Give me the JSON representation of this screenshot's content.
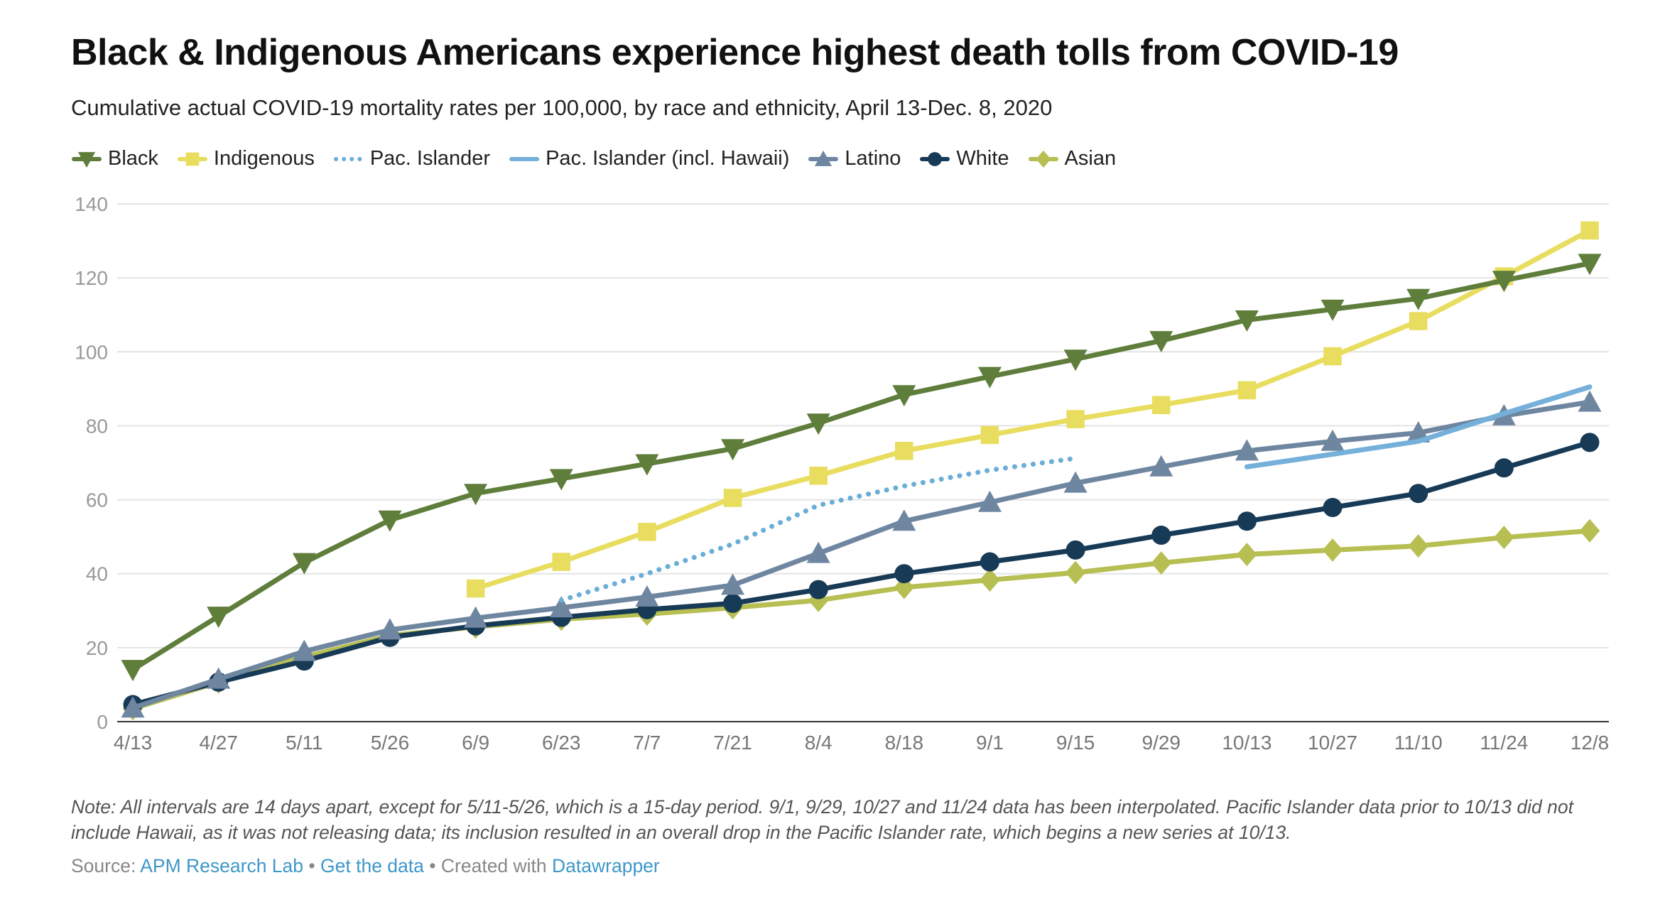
{
  "chart_data": {
    "type": "line",
    "title": "Black & Indigenous Americans experience highest death tolls from COVID-19",
    "subtitle": "Cumulative actual COVID-19 mortality rates per 100,000, by race and ethnicity, April 13-Dec. 8, 2020",
    "xlabel": "",
    "ylabel": "",
    "categories": [
      "4/13",
      "4/27",
      "5/11",
      "5/26",
      "6/9",
      "6/23",
      "7/7",
      "7/21",
      "8/4",
      "8/18",
      "9/1",
      "9/15",
      "9/29",
      "10/13",
      "10/27",
      "11/10",
      "11/24",
      "12/8"
    ],
    "ylim": [
      0,
      140
    ],
    "yticks": [
      0,
      20,
      40,
      60,
      80,
      100,
      120,
      140
    ],
    "grid": true,
    "legend_position": "top-left",
    "series": [
      {
        "name": "Black",
        "color": "#5f7d3b",
        "marker": "triangle-down",
        "dash": false,
        "values": [
          14.1,
          28.5,
          43,
          54.5,
          61.7,
          65.7,
          69.7,
          73.8,
          80.7,
          88.4,
          93.3,
          98,
          103,
          108.6,
          111.5,
          114.4,
          119.3,
          123.9
        ]
      },
      {
        "name": "Indigenous",
        "color": "#e8dd5f",
        "marker": "square",
        "dash": false,
        "values": [
          null,
          null,
          null,
          null,
          36,
          43.2,
          51.3,
          60.5,
          66.5,
          73.2,
          77.5,
          81.8,
          85.6,
          89.6,
          98.8,
          108.3,
          120.4,
          132.8
        ]
      },
      {
        "name": "Pac. Islander",
        "color": "#6aaed8",
        "marker": "none",
        "dash": true,
        "values": [
          null,
          null,
          null,
          null,
          null,
          32.8,
          40,
          48,
          58.5,
          63.7,
          68,
          71.2,
          null,
          null,
          null,
          null,
          null,
          null
        ]
      },
      {
        "name": "Pac. Islander (incl. Hawaii)",
        "color": "#74b0d9",
        "marker": "none",
        "dash": false,
        "values": [
          null,
          null,
          null,
          null,
          null,
          null,
          null,
          null,
          null,
          null,
          null,
          null,
          null,
          68.9,
          72.3,
          75.8,
          83.3,
          90.5
        ]
      },
      {
        "name": "Latino",
        "color": "#6f86a1",
        "marker": "triangle-up",
        "dash": false,
        "values": [
          3.7,
          11.5,
          19,
          24.8,
          28,
          30.8,
          33.7,
          36.9,
          45.5,
          54.2,
          59.3,
          64.5,
          68.9,
          73.2,
          75.8,
          78.1,
          82.7,
          86.4
        ]
      },
      {
        "name": "White",
        "color": "#173a56",
        "marker": "circle",
        "dash": false,
        "values": [
          4.6,
          10.7,
          16.4,
          22.8,
          25.9,
          28.2,
          30.3,
          32,
          35.7,
          40,
          43.2,
          46.4,
          50.4,
          54.2,
          57.9,
          61.7,
          68.6,
          75.5
        ]
      },
      {
        "name": "Asian",
        "color": "#b7be52",
        "marker": "diamond",
        "dash": false,
        "values": [
          3.5,
          10.7,
          17.5,
          23.3,
          25.6,
          27.7,
          29.1,
          30.8,
          32.8,
          36.3,
          38.3,
          40.3,
          42.9,
          45.2,
          46.4,
          47.5,
          49.8,
          51.6
        ]
      }
    ]
  },
  "note": "Note: All intervals are 14 days apart, except for 5/11-5/26, which is a 15-day period. 9/1, 9/29, 10/27 and 11/24 data has been interpolated. Pacific Islander data prior to 10/13 did not include Hawaii, as it was not releasing data; its inclusion resulted in an overall drop in the Pacific Islander rate, which begins a new series at 10/13.",
  "source": {
    "label": "Source:",
    "org": "APM Research Lab",
    "sep1": " • ",
    "get_data": "Get the data",
    "sep2": " • Created with ",
    "tool": "Datawrapper"
  }
}
